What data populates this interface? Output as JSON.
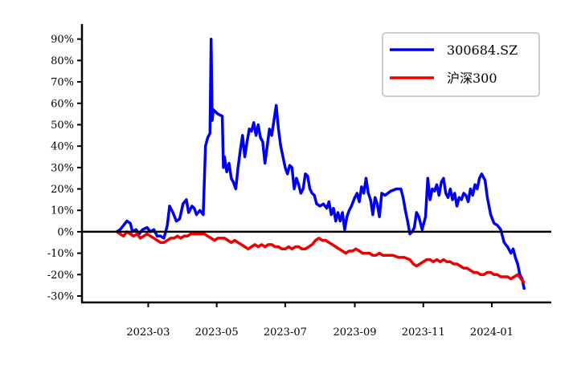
{
  "chart_data": {
    "type": "line",
    "xlim": [
      "2023-01-01",
      "2024-02-23"
    ],
    "ylim": [
      -33,
      97
    ],
    "yticks": [
      -30,
      -20,
      -10,
      0,
      10,
      20,
      30,
      40,
      50,
      60,
      70,
      80,
      90
    ],
    "ytick_labels": [
      "-30%",
      "-20%",
      "-10%",
      "0%",
      "10%",
      "20%",
      "30%",
      "40%",
      "50%",
      "60%",
      "70%",
      "80%",
      "90%"
    ],
    "xticks": [
      "2023-03-01",
      "2023-05-01",
      "2023-07-01",
      "2023-09-01",
      "2023-11-01",
      "2024-01-01"
    ],
    "xtick_labels": [
      "2023-03",
      "2023-05",
      "2023-07",
      "2023-09",
      "2023-11",
      "2024-01"
    ],
    "zero_line": true,
    "grid": false,
    "legend_position": "top-right",
    "series": [
      {
        "name": "300684.SZ",
        "color": "#0000ee",
        "points": [
          [
            "2023-02-01",
            0
          ],
          [
            "2023-02-04",
            1
          ],
          [
            "2023-02-07",
            3
          ],
          [
            "2023-02-10",
            5
          ],
          [
            "2023-02-13",
            4
          ],
          [
            "2023-02-15",
            0
          ],
          [
            "2023-02-18",
            1
          ],
          [
            "2023-02-21",
            -1
          ],
          [
            "2023-02-24",
            1
          ],
          [
            "2023-02-28",
            2
          ],
          [
            "2023-03-03",
            0
          ],
          [
            "2023-03-06",
            1
          ],
          [
            "2023-03-09",
            -2
          ],
          [
            "2023-03-12",
            -2
          ],
          [
            "2023-03-15",
            -3
          ],
          [
            "2023-03-18",
            3
          ],
          [
            "2023-03-20",
            12
          ],
          [
            "2023-03-23",
            9
          ],
          [
            "2023-03-26",
            5
          ],
          [
            "2023-03-29",
            6
          ],
          [
            "2023-04-01",
            13
          ],
          [
            "2023-04-04",
            15
          ],
          [
            "2023-04-06",
            9
          ],
          [
            "2023-04-09",
            12
          ],
          [
            "2023-04-11",
            11
          ],
          [
            "2023-04-13",
            8
          ],
          [
            "2023-04-16",
            10
          ],
          [
            "2023-04-19",
            8
          ],
          [
            "2023-04-21",
            40
          ],
          [
            "2023-04-23",
            44
          ],
          [
            "2023-04-25",
            46
          ],
          [
            "2023-04-26",
            90
          ],
          [
            "2023-04-27",
            52
          ],
          [
            "2023-04-28",
            57
          ],
          [
            "2023-05-02",
            55
          ],
          [
            "2023-05-06",
            54
          ],
          [
            "2023-05-07",
            30
          ],
          [
            "2023-05-08",
            35
          ],
          [
            "2023-05-10",
            28
          ],
          [
            "2023-05-12",
            32
          ],
          [
            "2023-05-14",
            25
          ],
          [
            "2023-05-16",
            23
          ],
          [
            "2023-05-18",
            20
          ],
          [
            "2023-05-20",
            30
          ],
          [
            "2023-05-22",
            38
          ],
          [
            "2023-05-24",
            45
          ],
          [
            "2023-05-26",
            35
          ],
          [
            "2023-05-28",
            42
          ],
          [
            "2023-05-30",
            48
          ],
          [
            "2023-06-01",
            47
          ],
          [
            "2023-06-03",
            51
          ],
          [
            "2023-06-05",
            45
          ],
          [
            "2023-06-07",
            50
          ],
          [
            "2023-06-09",
            44
          ],
          [
            "2023-06-11",
            42
          ],
          [
            "2023-06-13",
            32
          ],
          [
            "2023-06-15",
            40
          ],
          [
            "2023-06-17",
            48
          ],
          [
            "2023-06-19",
            45
          ],
          [
            "2023-06-21",
            52
          ],
          [
            "2023-06-23",
            59
          ],
          [
            "2023-06-25",
            48
          ],
          [
            "2023-06-27",
            40
          ],
          [
            "2023-06-29",
            35
          ],
          [
            "2023-07-01",
            30
          ],
          [
            "2023-07-03",
            27
          ],
          [
            "2023-07-05",
            31
          ],
          [
            "2023-07-07",
            30
          ],
          [
            "2023-07-09",
            20
          ],
          [
            "2023-07-11",
            25
          ],
          [
            "2023-07-13",
            22
          ],
          [
            "2023-07-15",
            18
          ],
          [
            "2023-07-17",
            20
          ],
          [
            "2023-07-19",
            27
          ],
          [
            "2023-07-21",
            26
          ],
          [
            "2023-07-23",
            20
          ],
          [
            "2023-07-25",
            18
          ],
          [
            "2023-07-27",
            17
          ],
          [
            "2023-07-29",
            13
          ],
          [
            "2023-08-01",
            12
          ],
          [
            "2023-08-04",
            13
          ],
          [
            "2023-08-07",
            11
          ],
          [
            "2023-08-09",
            14
          ],
          [
            "2023-08-11",
            8
          ],
          [
            "2023-08-13",
            11
          ],
          [
            "2023-08-15",
            5
          ],
          [
            "2023-08-17",
            9
          ],
          [
            "2023-08-19",
            5
          ],
          [
            "2023-08-21",
            9
          ],
          [
            "2023-08-23",
            1
          ],
          [
            "2023-08-25",
            7
          ],
          [
            "2023-08-27",
            10
          ],
          [
            "2023-08-29",
            12
          ],
          [
            "2023-09-01",
            16
          ],
          [
            "2023-09-03",
            18
          ],
          [
            "2023-09-05",
            14
          ],
          [
            "2023-09-07",
            21
          ],
          [
            "2023-09-09",
            18
          ],
          [
            "2023-09-11",
            25
          ],
          [
            "2023-09-13",
            18
          ],
          [
            "2023-09-15",
            15
          ],
          [
            "2023-09-17",
            8
          ],
          [
            "2023-09-19",
            16
          ],
          [
            "2023-09-21",
            13
          ],
          [
            "2023-09-23",
            7
          ],
          [
            "2023-09-25",
            18
          ],
          [
            "2023-09-28",
            17
          ],
          [
            "2023-10-03",
            19
          ],
          [
            "2023-10-08",
            20
          ],
          [
            "2023-10-12",
            20
          ],
          [
            "2023-10-14",
            16
          ],
          [
            "2023-10-16",
            10
          ],
          [
            "2023-10-18",
            5
          ],
          [
            "2023-10-20",
            -1
          ],
          [
            "2023-10-22",
            0
          ],
          [
            "2023-10-24",
            2
          ],
          [
            "2023-10-26",
            9
          ],
          [
            "2023-10-28",
            7
          ],
          [
            "2023-10-31",
            1
          ],
          [
            "2023-11-03",
            7
          ],
          [
            "2023-11-05",
            25
          ],
          [
            "2023-11-07",
            15
          ],
          [
            "2023-11-09",
            20
          ],
          [
            "2023-11-11",
            19
          ],
          [
            "2023-11-13",
            22
          ],
          [
            "2023-11-15",
            17
          ],
          [
            "2023-11-17",
            23
          ],
          [
            "2023-11-19",
            25
          ],
          [
            "2023-11-21",
            18
          ],
          [
            "2023-11-23",
            16
          ],
          [
            "2023-11-25",
            20
          ],
          [
            "2023-11-27",
            15
          ],
          [
            "2023-11-29",
            18
          ],
          [
            "2023-12-01",
            12
          ],
          [
            "2023-12-03",
            16
          ],
          [
            "2023-12-05",
            15
          ],
          [
            "2023-12-07",
            18
          ],
          [
            "2023-12-09",
            17
          ],
          [
            "2023-12-11",
            14
          ],
          [
            "2023-12-13",
            20
          ],
          [
            "2023-12-15",
            17
          ],
          [
            "2023-12-17",
            22
          ],
          [
            "2023-12-19",
            20
          ],
          [
            "2023-12-21",
            25
          ],
          [
            "2023-12-23",
            27
          ],
          [
            "2023-12-26",
            24
          ],
          [
            "2023-12-28",
            16
          ],
          [
            "2023-12-31",
            8
          ],
          [
            "2024-01-03",
            4
          ],
          [
            "2024-01-06",
            3
          ],
          [
            "2024-01-09",
            1
          ],
          [
            "2024-01-12",
            -5
          ],
          [
            "2024-01-15",
            -7
          ],
          [
            "2024-01-18",
            -10
          ],
          [
            "2024-01-20",
            -8
          ],
          [
            "2024-01-22",
            -12
          ],
          [
            "2024-01-24",
            -15
          ],
          [
            "2024-01-26",
            -20
          ],
          [
            "2024-01-28",
            -22
          ],
          [
            "2024-01-30",
            -27
          ]
        ]
      },
      {
        "name": "沪深300",
        "color": "#ee0000",
        "points": [
          [
            "2023-02-01",
            0
          ],
          [
            "2023-02-04",
            -1
          ],
          [
            "2023-02-07",
            -2
          ],
          [
            "2023-02-10",
            0
          ],
          [
            "2023-02-13",
            -1
          ],
          [
            "2023-02-16",
            -2
          ],
          [
            "2023-02-19",
            -1
          ],
          [
            "2023-02-22",
            -3
          ],
          [
            "2023-02-25",
            -2
          ],
          [
            "2023-02-28",
            -1
          ],
          [
            "2023-03-03",
            -2
          ],
          [
            "2023-03-06",
            -3
          ],
          [
            "2023-03-09",
            -4
          ],
          [
            "2023-03-12",
            -5
          ],
          [
            "2023-03-15",
            -5
          ],
          [
            "2023-03-18",
            -4
          ],
          [
            "2023-03-21",
            -3
          ],
          [
            "2023-03-24",
            -3
          ],
          [
            "2023-03-27",
            -2
          ],
          [
            "2023-03-30",
            -3
          ],
          [
            "2023-04-02",
            -2
          ],
          [
            "2023-04-05",
            -2
          ],
          [
            "2023-04-08",
            -1
          ],
          [
            "2023-04-11",
            -1
          ],
          [
            "2023-04-14",
            -1
          ],
          [
            "2023-04-17",
            -1
          ],
          [
            "2023-04-20",
            -1
          ],
          [
            "2023-04-23",
            -2
          ],
          [
            "2023-04-26",
            -3
          ],
          [
            "2023-04-29",
            -4
          ],
          [
            "2023-05-02",
            -3
          ],
          [
            "2023-05-05",
            -3
          ],
          [
            "2023-05-08",
            -3
          ],
          [
            "2023-05-11",
            -4
          ],
          [
            "2023-05-14",
            -5
          ],
          [
            "2023-05-17",
            -4
          ],
          [
            "2023-05-20",
            -5
          ],
          [
            "2023-05-23",
            -6
          ],
          [
            "2023-05-26",
            -7
          ],
          [
            "2023-05-29",
            -8
          ],
          [
            "2023-06-01",
            -7
          ],
          [
            "2023-06-04",
            -6
          ],
          [
            "2023-06-07",
            -7
          ],
          [
            "2023-06-10",
            -6
          ],
          [
            "2023-06-13",
            -7
          ],
          [
            "2023-06-16",
            -6
          ],
          [
            "2023-06-19",
            -6
          ],
          [
            "2023-06-22",
            -7
          ],
          [
            "2023-06-25",
            -7
          ],
          [
            "2023-06-28",
            -8
          ],
          [
            "2023-07-01",
            -8
          ],
          [
            "2023-07-04",
            -7
          ],
          [
            "2023-07-07",
            -8
          ],
          [
            "2023-07-10",
            -7
          ],
          [
            "2023-07-13",
            -7
          ],
          [
            "2023-07-16",
            -8
          ],
          [
            "2023-07-19",
            -8
          ],
          [
            "2023-07-22",
            -7
          ],
          [
            "2023-07-25",
            -6
          ],
          [
            "2023-07-28",
            -4
          ],
          [
            "2023-07-31",
            -3
          ],
          [
            "2023-08-03",
            -4
          ],
          [
            "2023-08-06",
            -4
          ],
          [
            "2023-08-09",
            -5
          ],
          [
            "2023-08-12",
            -6
          ],
          [
            "2023-08-15",
            -7
          ],
          [
            "2023-08-18",
            -8
          ],
          [
            "2023-08-21",
            -9
          ],
          [
            "2023-08-24",
            -10
          ],
          [
            "2023-08-27",
            -9
          ],
          [
            "2023-08-30",
            -9
          ],
          [
            "2023-09-02",
            -8
          ],
          [
            "2023-09-05",
            -9
          ],
          [
            "2023-09-08",
            -10
          ],
          [
            "2023-09-11",
            -10
          ],
          [
            "2023-09-14",
            -10
          ],
          [
            "2023-09-17",
            -11
          ],
          [
            "2023-09-20",
            -11
          ],
          [
            "2023-09-23",
            -10
          ],
          [
            "2023-09-26",
            -11
          ],
          [
            "2023-09-29",
            -11
          ],
          [
            "2023-10-05",
            -11
          ],
          [
            "2023-10-10",
            -12
          ],
          [
            "2023-10-15",
            -12
          ],
          [
            "2023-10-20",
            -13
          ],
          [
            "2023-10-23",
            -15
          ],
          [
            "2023-10-26",
            -16
          ],
          [
            "2023-10-29",
            -15
          ],
          [
            "2023-11-01",
            -14
          ],
          [
            "2023-11-04",
            -13
          ],
          [
            "2023-11-07",
            -13
          ],
          [
            "2023-11-10",
            -14
          ],
          [
            "2023-11-13",
            -13
          ],
          [
            "2023-11-16",
            -14
          ],
          [
            "2023-11-19",
            -13
          ],
          [
            "2023-11-22",
            -14
          ],
          [
            "2023-11-25",
            -14
          ],
          [
            "2023-11-28",
            -15
          ],
          [
            "2023-12-01",
            -15
          ],
          [
            "2023-12-04",
            -16
          ],
          [
            "2023-12-07",
            -17
          ],
          [
            "2023-12-10",
            -17
          ],
          [
            "2023-12-13",
            -18
          ],
          [
            "2023-12-16",
            -19
          ],
          [
            "2023-12-19",
            -19
          ],
          [
            "2023-12-22",
            -20
          ],
          [
            "2023-12-25",
            -20
          ],
          [
            "2023-12-28",
            -19
          ],
          [
            "2023-12-31",
            -19
          ],
          [
            "2024-01-03",
            -20
          ],
          [
            "2024-01-06",
            -20
          ],
          [
            "2024-01-09",
            -21
          ],
          [
            "2024-01-12",
            -21
          ],
          [
            "2024-01-15",
            -21
          ],
          [
            "2024-01-18",
            -22
          ],
          [
            "2024-01-21",
            -21
          ],
          [
            "2024-01-24",
            -20
          ],
          [
            "2024-01-27",
            -22
          ],
          [
            "2024-01-30",
            -24
          ]
        ]
      }
    ]
  }
}
